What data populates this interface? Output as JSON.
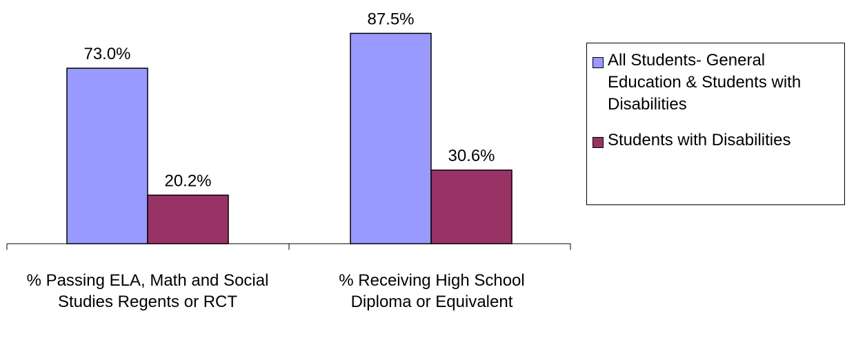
{
  "chart_data": {
    "type": "bar",
    "categories": [
      "% Passing ELA, Math and Social Studies Regents or RCT",
      "% Receiving High School Diploma or Equivalent"
    ],
    "series": [
      {
        "name": "All Students- General Education & Students with Disabilities",
        "values": [
          73.0,
          87.5
        ],
        "labels": [
          "73.0%",
          "87.5%"
        ],
        "color": "#9999ff"
      },
      {
        "name": "Students with Disabilities",
        "values": [
          20.2,
          30.6
        ],
        "labels": [
          "20.2%",
          "30.6%"
        ],
        "color": "#993366"
      }
    ],
    "ylim": [
      0,
      100
    ],
    "grid": false,
    "legend_position": "right"
  }
}
